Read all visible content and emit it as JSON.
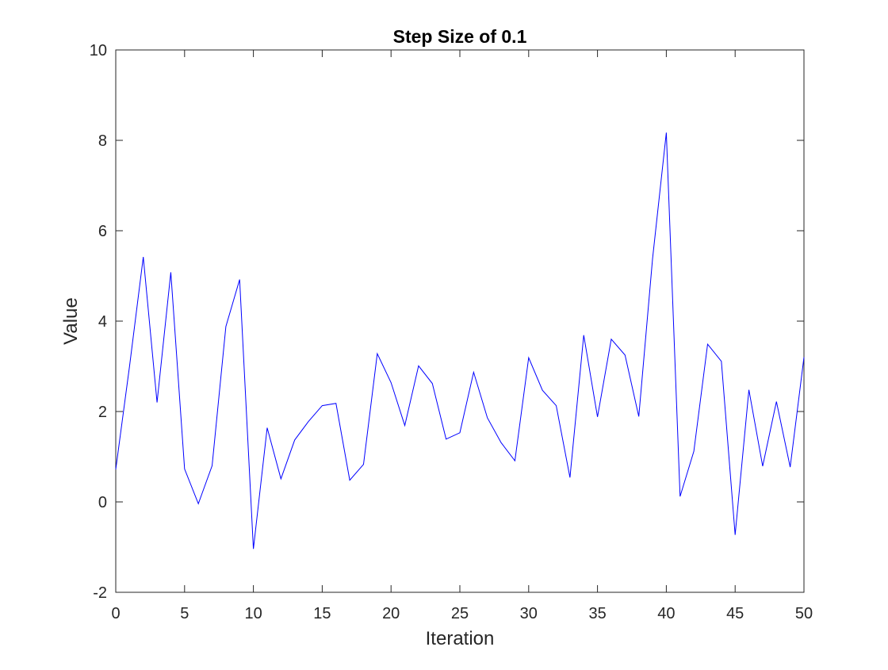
{
  "chart_data": {
    "type": "line",
    "title": "Step Size of 0.1",
    "xlabel": "Iteration",
    "ylabel": "Value",
    "xlim": [
      0,
      50
    ],
    "ylim": [
      -2,
      10
    ],
    "xticks": [
      0,
      5,
      10,
      15,
      20,
      25,
      30,
      35,
      40,
      45,
      50
    ],
    "yticks": [
      -2,
      0,
      2,
      4,
      6,
      8,
      10
    ],
    "grid": false,
    "series": [
      {
        "color": "#0000ff",
        "x": [
          0,
          1,
          2,
          3,
          4,
          5,
          6,
          7,
          8,
          9,
          10,
          11,
          12,
          13,
          14,
          15,
          16,
          17,
          18,
          19,
          20,
          21,
          22,
          23,
          24,
          25,
          26,
          27,
          28,
          29,
          30,
          31,
          32,
          33,
          34,
          35,
          36,
          37,
          38,
          39,
          40,
          41,
          42,
          43,
          44,
          45,
          46,
          47,
          48,
          49,
          50
        ],
        "values": [
          0.72,
          3.0,
          5.42,
          2.2,
          5.08,
          0.73,
          -0.04,
          0.8,
          3.88,
          4.92,
          -1.04,
          1.64,
          0.51,
          1.37,
          1.78,
          2.13,
          2.18,
          0.48,
          0.83,
          3.28,
          2.64,
          1.69,
          3.01,
          2.62,
          1.39,
          1.53,
          2.87,
          1.86,
          1.31,
          0.91,
          3.19,
          2.47,
          2.13,
          0.54,
          3.69,
          1.88,
          3.6,
          3.25,
          1.89,
          5.38,
          8.17,
          0.12,
          1.12,
          3.49,
          3.11,
          -0.73,
          2.48,
          0.79,
          2.22,
          0.77,
          3.2
        ]
      }
    ]
  }
}
